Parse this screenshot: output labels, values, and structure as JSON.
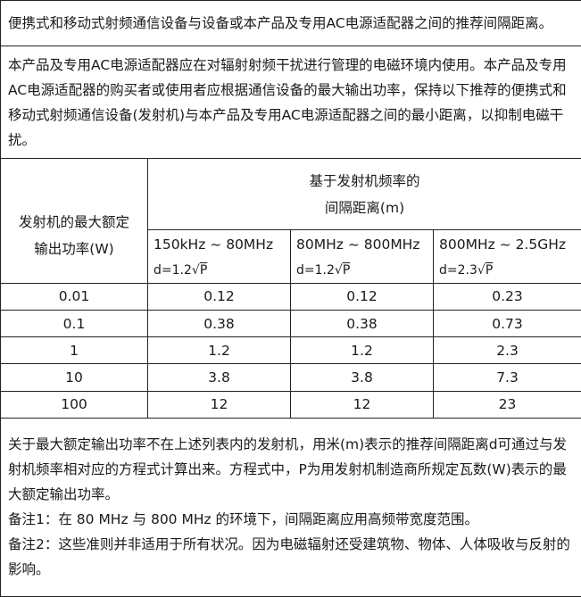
{
  "title": "便携式和移动式射频通信设备与设备或本产品及专用AC电源适配器之间的推荐间隔距离。",
  "description": "本产品及专用AC电源适配器应在对辐射射频干扰进行管理的电磁环境内使用。本产品及专用AC电源适配器的购买者或使用者应根据通信设备的最大输出功率，保持以下推荐的便携式和移动式射频通信设备(发射机)与本产品及专用AC电源适配器之间的最小距离，以抑制电磁干扰。",
  "table": {
    "power_header_line1": "发射机的最大额定",
    "power_header_line2": "输出功率(W)",
    "group_header_line1": "基于发射机频率的",
    "group_header_line2": "间隔距离(m)",
    "ranges": [
      {
        "label": "150kHz ~ 80MHz",
        "formula_prefix": "d=1.2",
        "formula_root": "P"
      },
      {
        "label": "80MHz ~ 800MHz",
        "formula_prefix": "d=1.2",
        "formula_root": "P"
      },
      {
        "label": "800MHz ~ 2.5GHz",
        "formula_prefix": "d=2.3",
        "formula_root": "P"
      }
    ],
    "rows": [
      {
        "power": "0.01",
        "d1": "0.12",
        "d2": "0.12",
        "d3": "0.23"
      },
      {
        "power": "0.1",
        "d1": "0.38",
        "d2": "0.38",
        "d3": "0.73"
      },
      {
        "power": "1",
        "d1": "1.2",
        "d2": "1.2",
        "d3": "2.3"
      },
      {
        "power": "10",
        "d1": "3.8",
        "d2": "3.8",
        "d3": "7.3"
      },
      {
        "power": "100",
        "d1": "12",
        "d2": "12",
        "d3": "23"
      }
    ]
  },
  "notes": {
    "main": "关于最大额定输出功率不在上述列表内的发射机，用米(m)表示的推荐间隔距离d可通过与发射机频率相对应的方程式计算出来。方程式中，P为用发射机制造商所规定瓦数(W)表示的最大额定输出功率。",
    "note1": "备注1：在 80 MHz 与 800 MHz 的环境下，间隔距离应用高频带宽度范围。",
    "note2": "备注2：这些准则并非适用于所有状况。因为电磁辐射还受建筑物、物体、人体吸收与反射的影响。"
  }
}
